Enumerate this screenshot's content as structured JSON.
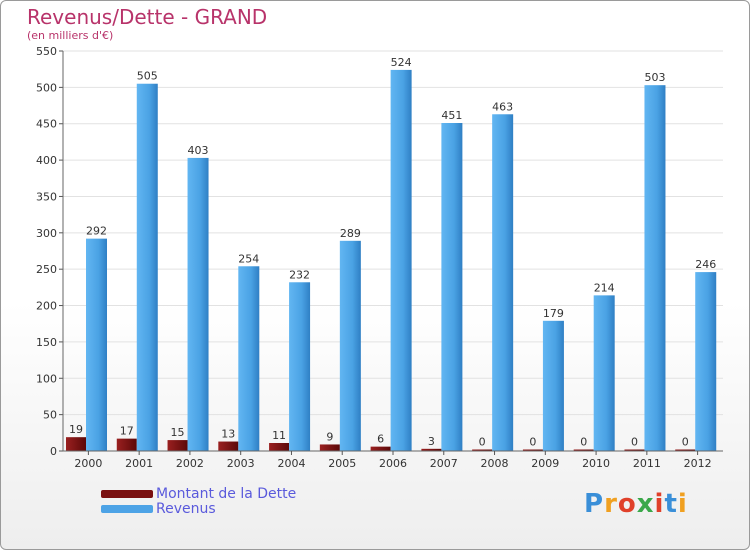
{
  "chart_data": {
    "type": "bar",
    "title": "Revenus/Dette - GRAND",
    "subtitle": "(en milliers d'€)",
    "xlabel": "",
    "ylabel": "",
    "ylim": [
      0,
      550
    ],
    "yticks": [
      0,
      50,
      100,
      150,
      200,
      250,
      300,
      350,
      400,
      450,
      500,
      550
    ],
    "grid": true,
    "legend_position": "bottom-left",
    "categories": [
      "2000",
      "2001",
      "2002",
      "2003",
      "2004",
      "2005",
      "2006",
      "2007",
      "2008",
      "2009",
      "2010",
      "2011",
      "2012"
    ],
    "series": [
      {
        "name": "Montant de la Dette",
        "color": "#7a1010",
        "values": [
          19,
          17,
          15,
          13,
          11,
          9,
          6,
          3,
          0,
          0,
          0,
          0,
          0
        ]
      },
      {
        "name": "Revenus",
        "color": "#4da3e6",
        "values": [
          292,
          505,
          403,
          254,
          232,
          289,
          524,
          451,
          463,
          179,
          214,
          503,
          246
        ]
      }
    ]
  },
  "logo": {
    "text": "Proxiti",
    "letter_colors": [
      "#3a8fd8",
      "#f0a020",
      "#e0402a",
      "#3aa84a",
      "#e0402a",
      "#3a8fd8",
      "#f0a020"
    ]
  }
}
